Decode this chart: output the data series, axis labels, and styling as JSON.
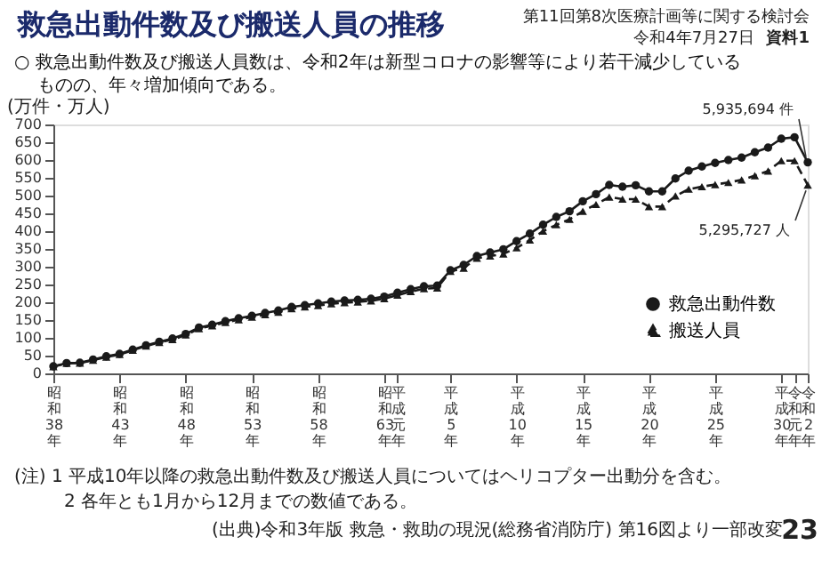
{
  "chart_data": {
    "type": "line",
    "title": "救急出動件数及び搬送人員の推移",
    "subtitle": "○ 救急出動件数及び搬送人員数は、令和2年は新型コロナの影響等により若干減少しているものの、年々増加傾向である。",
    "ylabel": "(万件・万人)",
    "categories": [
      "昭和38年",
      null,
      null,
      null,
      null,
      "昭和43年",
      null,
      null,
      null,
      null,
      "昭和48年",
      null,
      null,
      null,
      null,
      "昭和53年",
      null,
      null,
      null,
      null,
      "昭和58年",
      null,
      null,
      null,
      null,
      "昭和63年",
      "平成元年",
      null,
      null,
      null,
      "平成5年",
      null,
      null,
      null,
      null,
      "平成10年",
      null,
      null,
      null,
      null,
      "平成15年",
      null,
      null,
      null,
      null,
      "平成20年",
      null,
      null,
      null,
      null,
      "平成25年",
      null,
      null,
      null,
      null,
      "平成30年",
      "令和元年",
      "令和2年"
    ],
    "series": [
      {
        "name": "救急出動件数",
        "color": "#1a1a1a",
        "marker": "circle",
        "line_style": "solid",
        "values": [
          20,
          29,
          30,
          39,
          48,
          55,
          67,
          79,
          89,
          98,
          111,
          129,
          137,
          147,
          155,
          162,
          170,
          177,
          187,
          192,
          197,
          202,
          205,
          207,
          210,
          216,
          227,
          237,
          245,
          247,
          290,
          305,
          330,
          340,
          349,
          372,
          393,
          418,
          440,
          456,
          484,
          504,
          530,
          525,
          529,
          512,
          512,
          548,
          570,
          582,
          592,
          600,
          607,
          622,
          635,
          660,
          664,
          593.5694
        ]
      },
      {
        "name": "搬送人員",
        "color": "#1a1a1a",
        "marker": "triangle",
        "line_style": "dashed",
        "values": [
          19,
          28,
          29,
          37,
          46,
          53,
          65,
          77,
          87,
          95,
          108,
          126,
          134,
          143,
          151,
          158,
          165,
          172,
          182,
          187,
          191,
          196,
          199,
          201,
          204,
          210,
          220,
          230,
          238,
          240,
          287,
          296,
          324,
          330,
          336,
          353,
          375,
          400,
          418,
          433,
          456,
          475,
          496,
          490,
          490,
          469,
          469,
          499,
          518,
          525,
          531,
          537,
          544,
          556,
          569,
          598,
          598,
          529.5727
        ]
      }
    ],
    "ylim": [
      0,
      700
    ],
    "yticks": [
      0,
      50,
      100,
      150,
      200,
      250,
      300,
      350,
      400,
      450,
      500,
      550,
      600,
      650,
      700
    ],
    "legend": "bottom right",
    "annotations": [
      {
        "text": "5,935,694 件",
        "x": "令和2年",
        "y": 593.5694
      },
      {
        "text": "5,295,727 人",
        "x": "令和2年",
        "y": 529.5727
      },
      "第11回第8次医療計画等に関する検討会",
      "令和4年7月27日",
      "資料1",
      "(注) 1 平成10年以降の救急出動件数及び搬送人員についてはヘリコプター出動分を含む。",
      "2 各年とも1月から12月までの数値である。",
      "(出典)令和3年版 救急・救助の現況(総務省消防庁) 第16図より一部改変",
      "23"
    ]
  }
}
